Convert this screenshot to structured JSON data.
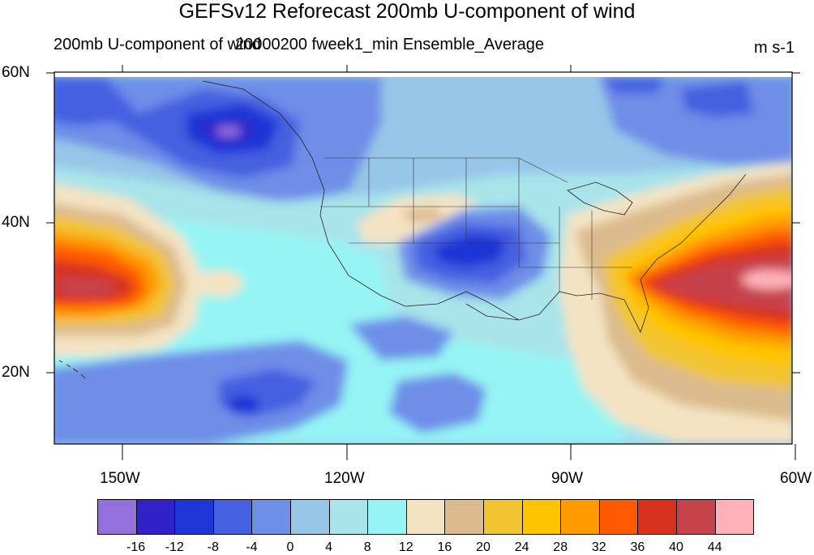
{
  "title": "GEFSv12 Reforecast 200mb U-component of wind",
  "subtitle_left": "200mb U-component of wind",
  "subtitle_overlap": "20000200 fweek1_min Ensemble_Average",
  "units": "m s-1",
  "lat_labels": [
    "60N",
    "40N",
    "20N"
  ],
  "lon_labels": [
    "150W",
    "120W",
    "90W",
    "60W"
  ],
  "colorbar": {
    "labels": [
      "-16",
      "-12",
      "-8",
      "-4",
      "0",
      "4",
      "8",
      "12",
      "16",
      "20",
      "24",
      "28",
      "32",
      "36",
      "40",
      "44"
    ],
    "colors": [
      "#9370db",
      "#3022c8",
      "#1e36d6",
      "#4560e0",
      "#6e8ee8",
      "#97c6e8",
      "#a8e4ea",
      "#96f4f4",
      "#f4e3c2",
      "#dbbb8d",
      "#f2c431",
      "#ffc400",
      "#ff9a00",
      "#ff5a00",
      "#d8311e",
      "#c6434c",
      "#ffb1b8"
    ]
  },
  "map": {
    "lat_range": [
      10,
      60
    ],
    "lon_range": [
      -160,
      -60
    ],
    "field": "200mb U-component of wind",
    "units": "m s-1"
  }
}
